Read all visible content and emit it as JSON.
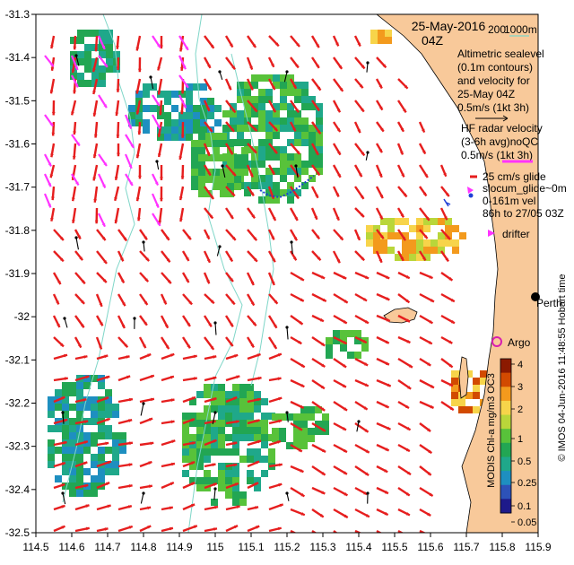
{
  "title": {
    "date": "25-May-2016",
    "time": "04Z"
  },
  "scale_legend": {
    "isobath_a": "200",
    "isobath_b": "1000m",
    "line_color": "#7fd6c8"
  },
  "legend": {
    "altimetry": [
      "Altimetric sealevel",
      "(0.1m contours)",
      "and velocity for",
      "25-May 04Z",
      "0.5m/s (1kt 3h)"
    ],
    "hf_radar": [
      "HF radar velocity",
      "(3-6h avg)noQC",
      "0.5m/s (1kt 3h)"
    ],
    "glider": [
      "25 cm/s glide",
      "slocum_glide~0m",
      "0-161m vel",
      "86h to 27/05 03Z"
    ],
    "drifter": "drifter",
    "argo": "Argo",
    "city": "Perth"
  },
  "colorbar": {
    "label": "MODIS Chl-a mg/m3 OC3",
    "ticks": [
      "4",
      "3",
      "2",
      "1",
      "0.5",
      "0.25",
      "0.1",
      "0.05"
    ],
    "colors": [
      "#8b1a00",
      "#d24a00",
      "#f39a1d",
      "#f7d44a",
      "#b9d63a",
      "#58c23a",
      "#22a653",
      "#1fa88a",
      "#1e8fc0",
      "#2d52b8",
      "#1e1a8a"
    ]
  },
  "credit": "© IMOS 04-Jun-2016 11:48:55 Hobart time",
  "axes": {
    "x_ticks": [
      "114.5",
      "114.6",
      "114.7",
      "114.8",
      "114.9",
      "115",
      "115.1",
      "115.2",
      "115.3",
      "115.4",
      "115.5",
      "115.6",
      "115.7",
      "115.8",
      "115.9"
    ],
    "y_ticks": [
      "-31.3",
      "-31.4",
      "-31.5",
      "-31.6",
      "-31.7",
      "-31.8",
      "-31.9",
      "-32",
      "-32.1",
      "-32.2",
      "-32.3",
      "-32.4",
      "-32.5"
    ],
    "lon_range": [
      114.5,
      115.9
    ],
    "lat_range": [
      -32.5,
      -31.3
    ]
  },
  "colors": {
    "land": "#f8c99a",
    "hf_arrow": "#e61e1e",
    "alt_arrow": "#000000",
    "drifter": "#ff33ff",
    "glider": "#1f3fd6",
    "argo": "#d81fb0"
  }
}
